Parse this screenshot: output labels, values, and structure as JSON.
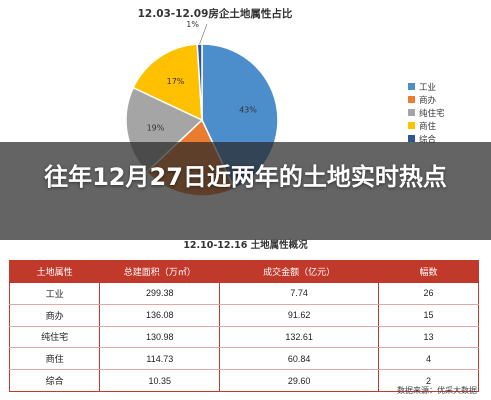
{
  "chart_data": [
    {
      "type": "pie",
      "title": "12.03-12.09房企土地属性占比",
      "categories": [
        "工业",
        "商办",
        "纯住宅",
        "商住",
        "综合"
      ],
      "values": [
        43,
        20,
        19,
        17,
        1
      ],
      "value_labels": [
        "43%",
        "",
        "19%",
        "17%",
        "1%"
      ],
      "colors": [
        "#4b8ecb",
        "#e97c2f",
        "#a5a5a5",
        "#ffc000",
        "#2f5597"
      ],
      "legend_position": "right"
    },
    {
      "type": "table",
      "title": "12.10-12.16 土地属性概况",
      "columns": [
        "土地属性",
        "总建面积（万㎡）",
        "成交金额（亿元）",
        "幅数"
      ],
      "rows": [
        [
          "工业",
          "299.38",
          "7.74",
          "26"
        ],
        [
          "商办",
          "136.08",
          "91.62",
          "15"
        ],
        [
          "纯住宅",
          "130.98",
          "132.61",
          "13"
        ],
        [
          "商住",
          "114.73",
          "60.84",
          "4"
        ],
        [
          "综合",
          "10.35",
          "29.60",
          "2"
        ]
      ]
    }
  ],
  "headline": "往年12月27日近两年的土地实时热点",
  "source_text": "数据来源：优采大数据"
}
